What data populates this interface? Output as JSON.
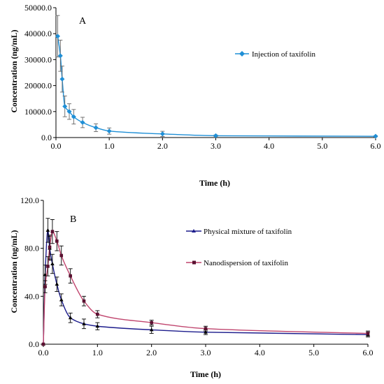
{
  "chart_data": [
    {
      "type": "line",
      "panel_label": "A",
      "xlabel": "Time (h)",
      "ylabel": "Concentration (ng/mL)",
      "xlim": [
        0,
        6
      ],
      "ylim": [
        0,
        50000
      ],
      "x_ticks": [
        "0.0",
        "1.0",
        "2.0",
        "3.0",
        "4.0",
        "5.0",
        "6.0"
      ],
      "y_ticks": [
        "0.0",
        "10000.0",
        "20000.0",
        "30000.0",
        "40000.0",
        "50000.0"
      ],
      "grid": false,
      "legend_position": "right",
      "series": [
        {
          "name": "Injection of taxifolin",
          "color": "#1f8fd6",
          "marker": "diamond",
          "x": [
            0.033,
            0.083,
            0.117,
            0.167,
            0.25,
            0.333,
            0.5,
            0.75,
            1.0,
            2.0,
            3.0,
            6.0
          ],
          "y": [
            39000,
            31500,
            22500,
            12000,
            10000,
            8000,
            5800,
            3800,
            2500,
            1400,
            700,
            500
          ],
          "err": [
            8000,
            6000,
            5000,
            4000,
            3000,
            2800,
            2000,
            1500,
            1200,
            1000,
            300,
            200
          ]
        }
      ]
    },
    {
      "type": "line",
      "panel_label": "B",
      "xlabel": "Time (h)",
      "ylabel": "Concentration (ng/mL)",
      "xlim": [
        0,
        6
      ],
      "ylim": [
        0,
        120
      ],
      "x_ticks": [
        "0.0",
        "1.0",
        "2.0",
        "3.0",
        "4.0",
        "5.0",
        "6.0"
      ],
      "y_ticks": [
        "0.0",
        "40.0",
        "80.0",
        "120.0"
      ],
      "grid": false,
      "legend_position": "right",
      "series": [
        {
          "name": "Physical mixture of taxifolin",
          "color": "#1c1c8c",
          "marker": "triangle",
          "x": [
            0,
            0.033,
            0.083,
            0.117,
            0.167,
            0.25,
            0.333,
            0.5,
            0.75,
            1.0,
            2.0,
            3.0,
            6.0
          ],
          "y": [
            0,
            58,
            95,
            80,
            67,
            50,
            37,
            22,
            17,
            15,
            12,
            10,
            8
          ],
          "err": [
            0,
            8,
            10,
            10,
            8,
            6,
            5,
            4,
            4,
            3,
            3,
            2,
            2
          ]
        },
        {
          "name": "Nanodispersion of taxifolin",
          "color": "#c0456e",
          "marker": "square",
          "x": [
            0,
            0.033,
            0.083,
            0.117,
            0.167,
            0.25,
            0.333,
            0.5,
            0.75,
            1.0,
            2.0,
            3.0,
            6.0
          ],
          "y": [
            0,
            48,
            65,
            81,
            94,
            86,
            74,
            57,
            36,
            25,
            18,
            13,
            9
          ],
          "err": [
            0,
            5,
            8,
            10,
            10,
            8,
            8,
            6,
            4,
            3,
            2,
            2,
            2
          ]
        }
      ]
    }
  ]
}
